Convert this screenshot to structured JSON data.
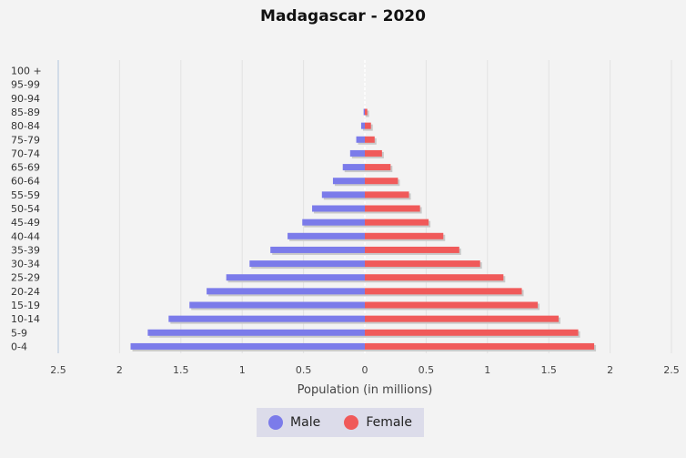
{
  "chart_data": {
    "type": "bar",
    "title": "Madagascar - 2020",
    "xlabel": "Population (in millions)",
    "ylabel": "",
    "categories": [
      "0-4",
      "5-9",
      "10-14",
      "15-19",
      "20-24",
      "25-29",
      "30-34",
      "35-39",
      "40-44",
      "45-49",
      "50-54",
      "55-59",
      "60-64",
      "65-69",
      "70-74",
      "75-79",
      "80-84",
      "85-89",
      "90-94",
      "95-99",
      "100 +"
    ],
    "series": [
      {
        "name": "Male",
        "color": "#7b7bea",
        "values": [
          1.91,
          1.77,
          1.6,
          1.43,
          1.29,
          1.13,
          0.94,
          0.77,
          0.63,
          0.51,
          0.43,
          0.35,
          0.26,
          0.18,
          0.12,
          0.07,
          0.03,
          0.01,
          0.0,
          0.0,
          0.0
        ]
      },
      {
        "name": "Female",
        "color": "#f05a5a",
        "values": [
          1.87,
          1.74,
          1.58,
          1.41,
          1.28,
          1.13,
          0.94,
          0.77,
          0.64,
          0.52,
          0.45,
          0.36,
          0.27,
          0.21,
          0.14,
          0.08,
          0.05,
          0.02,
          0.0,
          0.0,
          0.0
        ]
      }
    ],
    "xlim": [
      -2.5,
      2.5
    ],
    "xticks": [
      "2.5",
      "2",
      "1.5",
      "1",
      "0.5",
      "0",
      "0.5",
      "1",
      "1.5",
      "2",
      "2.5"
    ],
    "grid": true,
    "legend_position": "bottom-center"
  }
}
